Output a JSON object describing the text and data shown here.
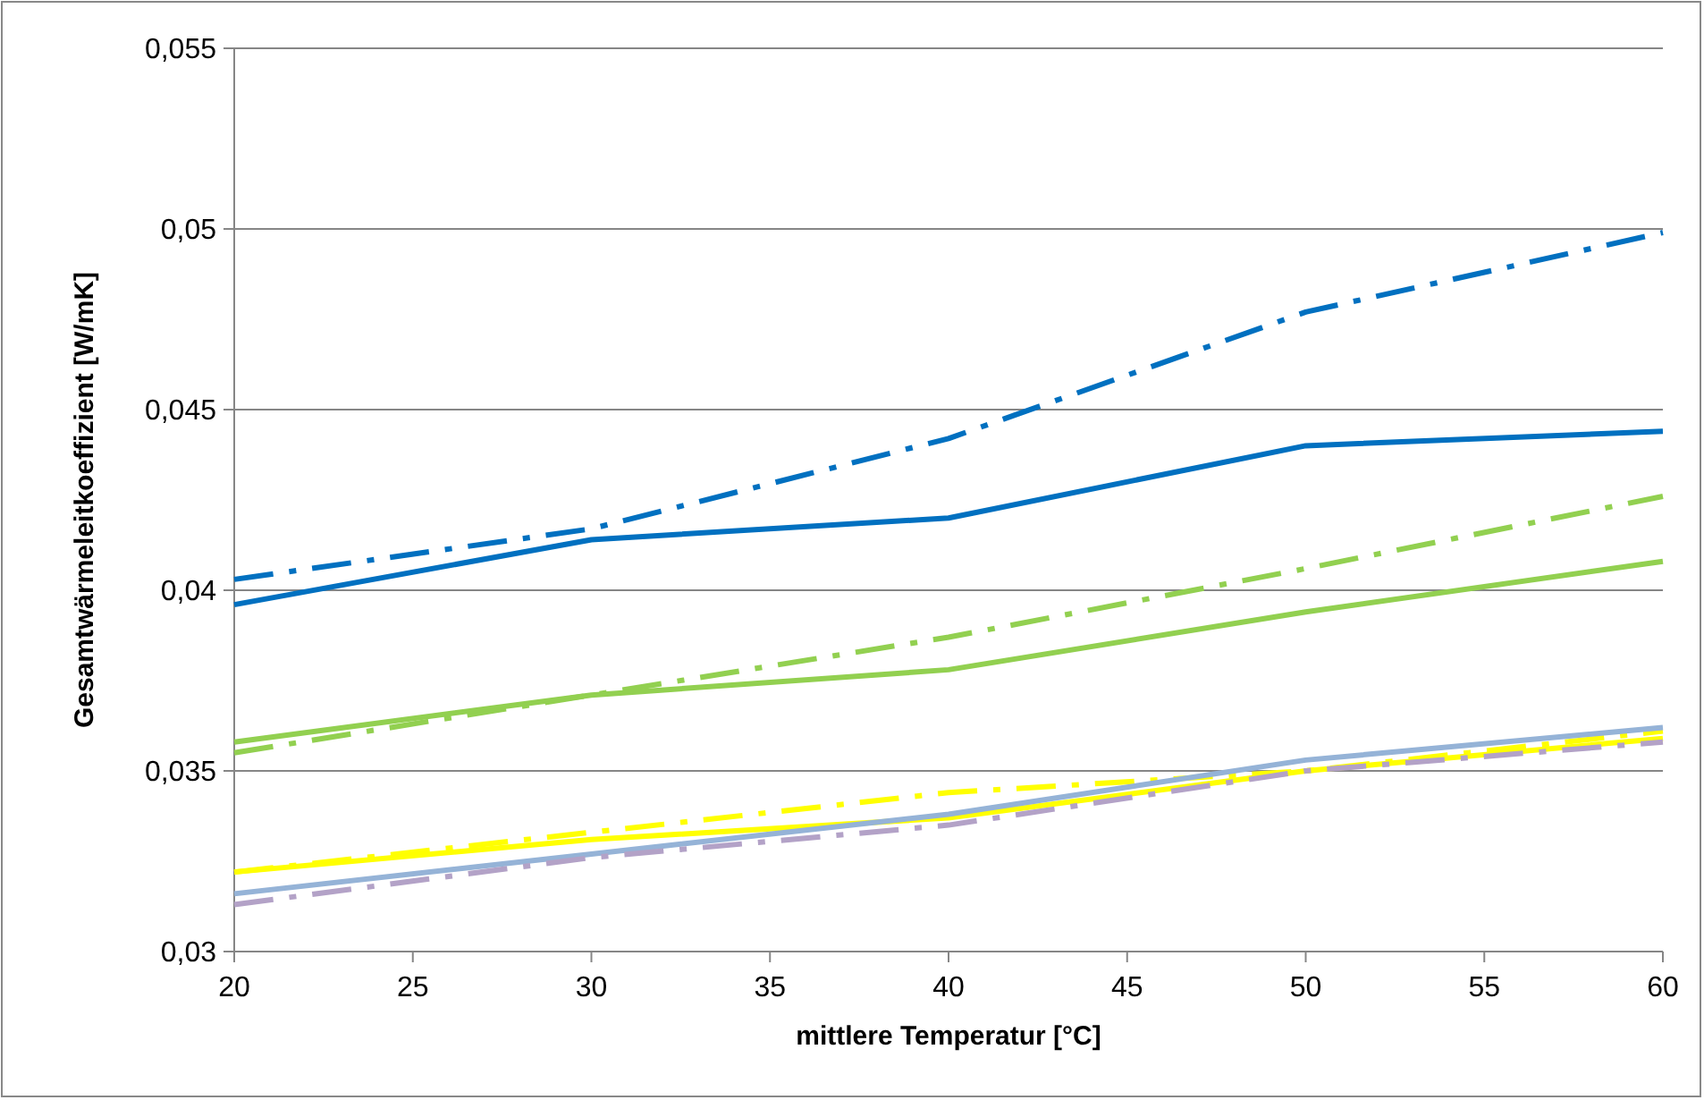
{
  "chart_data": {
    "type": "line",
    "xlabel": "mittlere Temperatur [°C]",
    "ylabel": "Gesamtwärmeleitkoeffizient [W/mK]",
    "x": [
      20,
      30,
      40,
      50,
      60
    ],
    "series": [
      {
        "color": "#0070c0",
        "line_style": "dashdot",
        "values": [
          0.0403,
          0.0417,
          0.0442,
          0.0477,
          0.0499
        ]
      },
      {
        "color": "#0070c0",
        "line_style": "solid",
        "values": [
          0.0396,
          0.0414,
          0.042,
          0.044,
          0.0444
        ]
      },
      {
        "color": "#92d050",
        "line_style": "dashdot",
        "values": [
          0.0355,
          0.0371,
          0.0387,
          0.0406,
          0.0426
        ]
      },
      {
        "color": "#92d050",
        "line_style": "solid",
        "values": [
          0.0358,
          0.0371,
          0.0378,
          0.0394,
          0.0408
        ]
      },
      {
        "color": "#ffff00",
        "line_style": "dashdot",
        "values": [
          0.0322,
          0.0333,
          0.0344,
          0.035,
          0.0361
        ]
      },
      {
        "color": "#ffff00",
        "line_style": "solid",
        "values": [
          0.0322,
          0.0331,
          0.0337,
          0.035,
          0.0359
        ]
      },
      {
        "color": "#95b3d7",
        "line_style": "solid",
        "values": [
          0.0316,
          0.0327,
          0.0338,
          0.0353,
          0.0362
        ]
      },
      {
        "color": "#b3a2c7",
        "line_style": "dashdot",
        "values": [
          0.0313,
          0.0326,
          0.0335,
          0.035,
          0.0358
        ]
      }
    ],
    "xlim": [
      20,
      60
    ],
    "xticks": [
      20,
      25,
      30,
      35,
      40,
      45,
      50,
      55,
      60
    ],
    "ylim": [
      0.03,
      0.055
    ],
    "yticks": [
      {
        "value": 0.03,
        "label": "0,03"
      },
      {
        "value": 0.035,
        "label": "0,035"
      },
      {
        "value": 0.04,
        "label": "0,04"
      },
      {
        "value": 0.045,
        "label": "0,045"
      },
      {
        "value": 0.05,
        "label": "0,05"
      },
      {
        "value": 0.055,
        "label": "0,055"
      }
    ],
    "grid": "y",
    "marker": "none"
  }
}
